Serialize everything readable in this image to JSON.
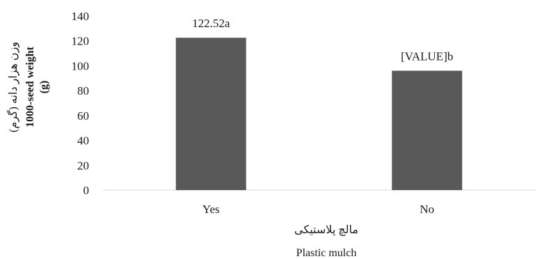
{
  "chart_data": {
    "type": "bar",
    "categories": [
      "Yes",
      "No"
    ],
    "series": [
      {
        "values": [
          122.52,
          96
        ],
        "data_labels": [
          "122.52a",
          "[VALUE]b"
        ]
      }
    ],
    "y_ticks": [
      "0",
      "20",
      "40",
      "60",
      "80",
      "100",
      "120",
      "140"
    ],
    "ylim": [
      0,
      140
    ],
    "xlabel_fa": "مالچ پلاستیکی",
    "xlabel_en": "Plastic mulch",
    "ylabel_fa": "وزن هزار دانه (گرم)",
    "ylabel_en_line1": "1000-seed weight",
    "ylabel_en_line2": "(g)",
    "bar_color": "#595959",
    "axis_color": "#d9d9d9",
    "grid": false,
    "legend": "none"
  }
}
